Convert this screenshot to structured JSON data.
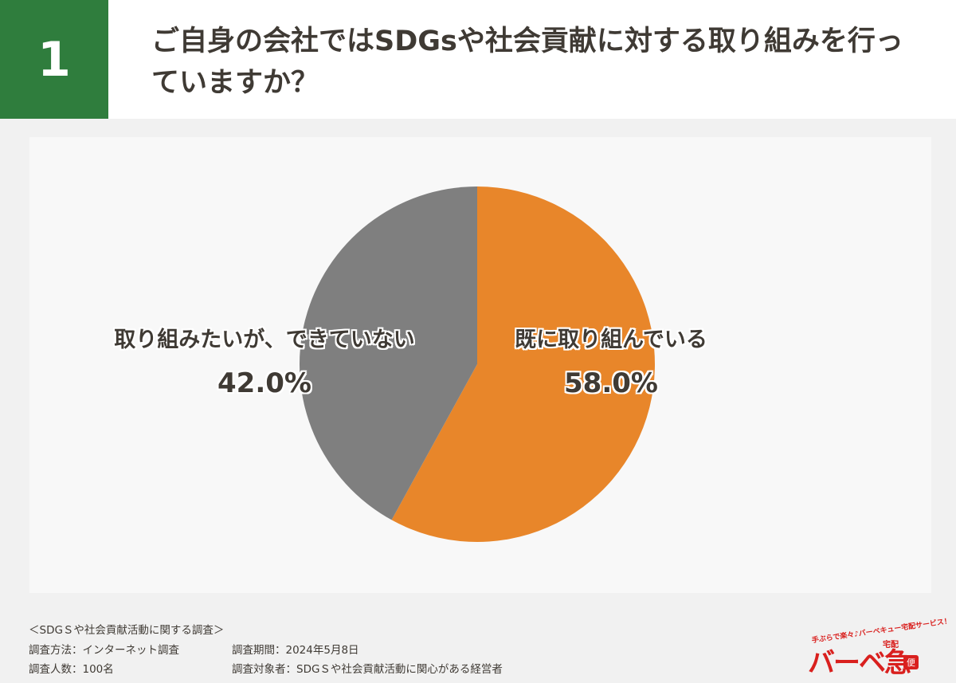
{
  "question": {
    "number": "1",
    "title": "ご自身の会社ではSDGsや社会貢献に対する取り組みを行っていますか？"
  },
  "chart_data": {
    "type": "pie",
    "start_angle_deg": 0,
    "direction": "clockwise",
    "slices": [
      {
        "label": "既に取り組んでいる",
        "value": 58.0,
        "value_label": "58.0%",
        "color": "#e8862a"
      },
      {
        "label": "取り組みたいが、できていない",
        "value": 42.0,
        "value_label": "42.0%",
        "color": "#7f7f7f"
      }
    ]
  },
  "footer": {
    "survey_title": "＜SDGＳや社会貢献活動に関する調査＞",
    "method": "調査方法：インターネット調査",
    "period": "調査期間：2024年5月8日",
    "respondents": "調査人数：100名",
    "target": "調査対象者：SDGＳや社会貢献活動に関心がある経営者"
  },
  "logo": {
    "tagline": "手ぶらで楽々♪バーベキュー宅配サービス！",
    "sub": "宅配",
    "name": "バーベ急",
    "badge": "便"
  }
}
